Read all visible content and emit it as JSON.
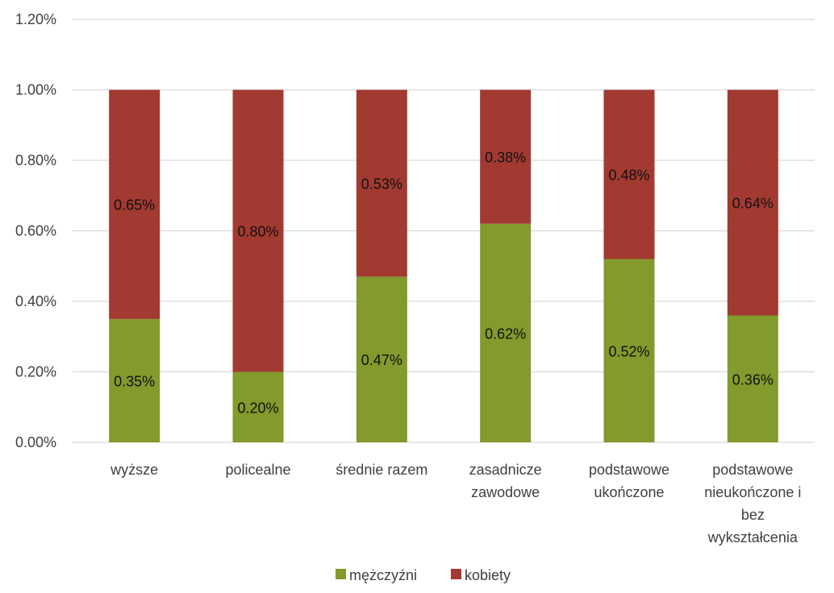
{
  "chart_data": {
    "type": "bar",
    "stacked": true,
    "title": "",
    "xlabel": "",
    "ylabel": "",
    "ylim": [
      0,
      1.2
    ],
    "y_ticks": [
      "0.00%",
      "0.20%",
      "0.40%",
      "0.60%",
      "0.80%",
      "1.00%",
      "1.20%"
    ],
    "y_tick_values": [
      0,
      0.2,
      0.4,
      0.6,
      0.8,
      1.0,
      1.2
    ],
    "grid": true,
    "legend_position": "bottom",
    "categories": [
      [
        "wyższe"
      ],
      [
        "policealne"
      ],
      [
        "średnie razem"
      ],
      [
        "zasadnicze",
        "zawodowe"
      ],
      [
        "podstawowe",
        "ukończone"
      ],
      [
        "podstawowe",
        "nieukończone i",
        "bez",
        "wykształcenia"
      ]
    ],
    "series": [
      {
        "name": "mężczyźni",
        "color": "#839A2C",
        "values": [
          0.35,
          0.2,
          0.47,
          0.62,
          0.52,
          0.36
        ],
        "labels": [
          "0.35%",
          "0.20%",
          "0.47%",
          "0.62%",
          "0.52%",
          "0.36%"
        ]
      },
      {
        "name": "kobiety",
        "color": "#A23A32",
        "values": [
          0.65,
          0.8,
          0.53,
          0.38,
          0.48,
          0.64
        ],
        "labels": [
          "0.65%",
          "0.80%",
          "0.53%",
          "0.38%",
          "0.48%",
          "0.64%"
        ]
      }
    ]
  }
}
